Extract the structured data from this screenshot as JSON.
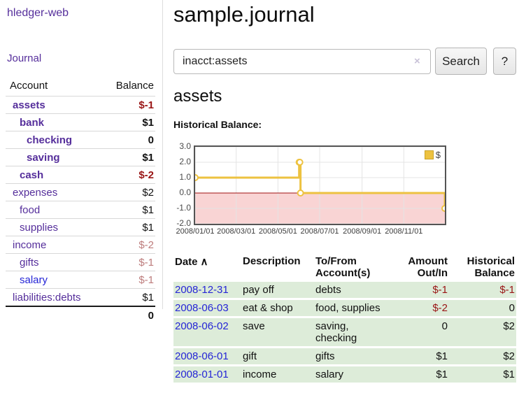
{
  "app": {
    "title": "hledger-web",
    "nav_journal": "Journal"
  },
  "sidebar": {
    "table_headers": {
      "account": "Account",
      "balance": "Balance"
    },
    "accounts": [
      {
        "name": "assets",
        "indent": 1,
        "bold": true,
        "link_color": "purple",
        "balance": "$-1",
        "balance_style": "neg-strong"
      },
      {
        "name": "bank",
        "indent": 2,
        "bold": true,
        "link_color": "purple",
        "balance": "$1",
        "balance_style": "normal"
      },
      {
        "name": "checking",
        "indent": 3,
        "bold": true,
        "link_color": "purple",
        "balance": "0",
        "balance_style": "normal"
      },
      {
        "name": "saving",
        "indent": 3,
        "bold": true,
        "link_color": "purple",
        "balance": "$1",
        "balance_style": "normal"
      },
      {
        "name": "cash",
        "indent": 2,
        "bold": true,
        "link_color": "purple",
        "balance": "$-2",
        "balance_style": "neg-strong"
      },
      {
        "name": "expenses",
        "indent": 1,
        "bold": false,
        "link_color": "purple",
        "balance": "$2",
        "balance_style": "normal"
      },
      {
        "name": "food",
        "indent": 2,
        "bold": false,
        "link_color": "purple",
        "balance": "$1",
        "balance_style": "normal"
      },
      {
        "name": "supplies",
        "indent": 2,
        "bold": false,
        "link_color": "purple",
        "balance": "$1",
        "balance_style": "normal"
      },
      {
        "name": "income",
        "indent": 1,
        "bold": false,
        "link_color": "purple",
        "balance": "$-2",
        "balance_style": "neg-soft"
      },
      {
        "name": "gifts",
        "indent": 2,
        "bold": false,
        "link_color": "purple",
        "balance": "$-1",
        "balance_style": "neg-soft"
      },
      {
        "name": "salary",
        "indent": 2,
        "bold": false,
        "link_color": "blue",
        "balance": "$-1",
        "balance_style": "neg-soft"
      },
      {
        "name": "liabilities:debts",
        "indent": 1,
        "bold": false,
        "link_color": "purple",
        "balance": "$1",
        "balance_style": "normal"
      }
    ],
    "total": "0"
  },
  "header": {
    "title": "sample.journal"
  },
  "search": {
    "query": "inacct:assets",
    "clear_icon": "×",
    "button_label": "Search",
    "help_label": "?"
  },
  "account_view": {
    "heading": "assets",
    "chart_title": "Historical Balance:"
  },
  "chart_data": {
    "type": "line",
    "step": true,
    "title": "Historical Balance:",
    "xlim": [
      "2008-01-01",
      "2008-12-31"
    ],
    "ylim": [
      -2,
      3
    ],
    "y_ticks": [
      "3.0",
      "2.0",
      "1.0",
      "0.0",
      "-1.0",
      "-2.0"
    ],
    "x_ticks": [
      {
        "label": "2008/01/01",
        "date": "2008-01-01"
      },
      {
        "label": "2008/03/01",
        "date": "2008-03-01"
      },
      {
        "label": "2008/05/01",
        "date": "2008-05-01"
      },
      {
        "label": "2008/07/01",
        "date": "2008-07-01"
      },
      {
        "label": "2008/09/01",
        "date": "2008-09-01"
      },
      {
        "label": "2008/11/01",
        "date": "2008-11-01"
      }
    ],
    "series": [
      {
        "name": "$",
        "color": "#edc240",
        "points": [
          [
            "2008-01-01",
            1
          ],
          [
            "2008-06-01",
            2
          ],
          [
            "2008-06-02",
            2
          ],
          [
            "2008-06-03",
            0
          ],
          [
            "2008-12-31",
            -1
          ]
        ]
      }
    ],
    "legend": {
      "label": "$",
      "swatch_color": "#edc240",
      "position": "top-right"
    },
    "grid": true,
    "grid_color": "#e4e4e4",
    "negative_region": {
      "from": 0,
      "to": -2,
      "fill": "#f9d4d4",
      "line_color": "#a01010"
    }
  },
  "register": {
    "headers": [
      "Date",
      "Description",
      "To/From Account(s)",
      "Amount Out/In",
      "Historical Balance"
    ],
    "sort_icon": "∧",
    "rows": [
      {
        "date": "2008-12-31",
        "description": "pay off",
        "accounts": "debts",
        "amount": "$-1",
        "amount_negative": true,
        "balance": "$-1",
        "balance_negative": true
      },
      {
        "date": "2008-06-03",
        "description": "eat & shop",
        "accounts": "food, supplies",
        "amount": "$-2",
        "amount_negative": true,
        "balance": "0",
        "balance_negative": false
      },
      {
        "date": "2008-06-02",
        "description": "save",
        "accounts": "saving, checking",
        "amount": "0",
        "amount_negative": false,
        "balance": "$2",
        "balance_negative": false
      },
      {
        "date": "2008-06-01",
        "description": "gift",
        "accounts": "gifts",
        "amount": "$1",
        "amount_negative": false,
        "balance": "$2",
        "balance_negative": false
      },
      {
        "date": "2008-01-01",
        "description": "income",
        "accounts": "salary",
        "amount": "$1",
        "amount_negative": false,
        "balance": "$1",
        "balance_negative": false
      }
    ]
  },
  "colors": {
    "link_purple": "#552e9b",
    "link_blue": "#2525d6",
    "negative_strong": "#991414",
    "negative_soft": "#bd7c7c",
    "row_green": "#ddecd9",
    "chart_line_gold": "#edc240",
    "chart_negative_pink": "#f9d4d4",
    "chart_zero_line": "#a01010",
    "chart_border": "#545454"
  }
}
